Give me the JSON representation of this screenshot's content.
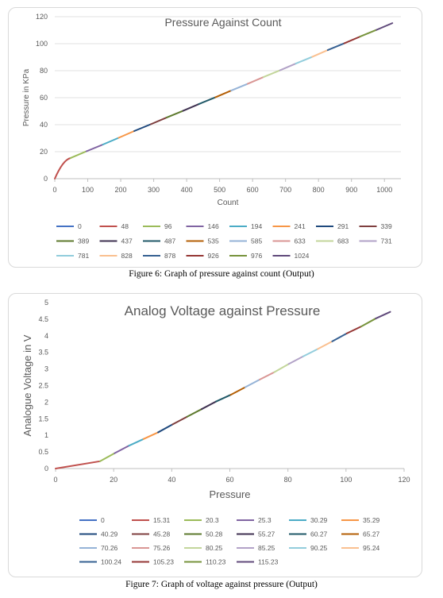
{
  "charts": [
    {
      "title": "Pressure Against Count",
      "caption": "Figure 6: Graph of pressure against count (Output)",
      "colors": [
        "#4472C4",
        "#C0504D",
        "#9BBB59",
        "#8064A2",
        "#4BACC6",
        "#F79646",
        "#1F497D",
        "#7F3F3F",
        "#5E7A2E",
        "#3F3151",
        "#215968",
        "#B45F06",
        "#95B3D7",
        "#D99694",
        "#C3D69B",
        "#B2A2C7",
        "#92CDDC",
        "#FAC090",
        "#366092",
        "#953735",
        "#77933C",
        "#604A7B"
      ],
      "chart_data": {
        "type": "line",
        "title": "Pressure Against Count",
        "xlabel": "Count",
        "ylabel": "Pressure in KPa",
        "xlim": [
          0,
          1050
        ],
        "ylim": [
          0,
          120
        ],
        "xticks": [
          0,
          100,
          200,
          300,
          400,
          500,
          600,
          700,
          800,
          900,
          1000
        ],
        "yticks": [
          0,
          20,
          40,
          60,
          80,
          100,
          120
        ],
        "grid": true,
        "legend_position": "bottom",
        "x": [
          0,
          48,
          96,
          146,
          194,
          241,
          291,
          339,
          389,
          437,
          487,
          535,
          585,
          633,
          683,
          731,
          781,
          828,
          878,
          926,
          976,
          1024
        ],
        "y": [
          0,
          15.31,
          20.3,
          25.3,
          30.29,
          35.29,
          40.29,
          45.28,
          50.28,
          55.27,
          60.27,
          65.27,
          70.26,
          75.26,
          80.25,
          85.25,
          90.25,
          95.24,
          100.24,
          105.23,
          110.23,
          115.23
        ],
        "series": [
          {
            "name": "0"
          },
          {
            "name": "48"
          },
          {
            "name": "96"
          },
          {
            "name": "146"
          },
          {
            "name": "194"
          },
          {
            "name": "241"
          },
          {
            "name": "291"
          },
          {
            "name": "339"
          },
          {
            "name": "389"
          },
          {
            "name": "437"
          },
          {
            "name": "487"
          },
          {
            "name": "535"
          },
          {
            "name": "585"
          },
          {
            "name": "633"
          },
          {
            "name": "683"
          },
          {
            "name": "731"
          },
          {
            "name": "781"
          },
          {
            "name": "828"
          },
          {
            "name": "878"
          },
          {
            "name": "926"
          },
          {
            "name": "976"
          },
          {
            "name": "1024"
          }
        ]
      }
    },
    {
      "title": "Analog Voltage against Pressure",
      "caption": "Figure 7: Graph of voltage against pressure (Output)",
      "colors": [
        "#4472C4",
        "#C0504D",
        "#9BBB59",
        "#8064A2",
        "#4BACC6",
        "#F79646",
        "#1F497D",
        "#7F3F3F",
        "#5E7A2E",
        "#3F3151",
        "#215968",
        "#B45F06",
        "#95B3D7",
        "#D99694",
        "#C3D69B",
        "#B2A2C7",
        "#92CDDC",
        "#FAC090",
        "#366092",
        "#953735",
        "#77933C",
        "#604A7B"
      ],
      "chart_data": {
        "type": "line",
        "title": "Analog Voltage against Pressure",
        "xlabel": "Pressure",
        "ylabel": "Analogue Voltage in V",
        "xlim": [
          0,
          120
        ],
        "ylim": [
          0,
          5
        ],
        "xticks": [
          0,
          20,
          40,
          60,
          80,
          100,
          120
        ],
        "yticks": [
          0,
          0.5,
          1,
          1.5,
          2,
          2.5,
          3,
          3.5,
          4,
          4.5,
          5
        ],
        "grid": false,
        "legend_position": "bottom",
        "x": [
          0,
          15.31,
          20.3,
          25.3,
          30.29,
          35.29,
          40.29,
          45.28,
          50.28,
          55.27,
          60.27,
          65.27,
          70.26,
          75.26,
          80.25,
          85.25,
          90.25,
          95.24,
          100.24,
          105.23,
          110.23,
          115.23
        ],
        "y": [
          0,
          0.22,
          0.46,
          0.69,
          0.89,
          1.09,
          1.33,
          1.56,
          1.79,
          2.02,
          2.22,
          2.45,
          2.68,
          2.9,
          3.15,
          3.38,
          3.6,
          3.83,
          4.07,
          4.28,
          4.52,
          4.72
        ],
        "series": [
          {
            "name": "0"
          },
          {
            "name": "15.31"
          },
          {
            "name": "20.3"
          },
          {
            "name": "25.3"
          },
          {
            "name": "30.29"
          },
          {
            "name": "35.29"
          },
          {
            "name": "40.29"
          },
          {
            "name": "45.28"
          },
          {
            "name": "50.28"
          },
          {
            "name": "55.27"
          },
          {
            "name": "60.27"
          },
          {
            "name": "65.27"
          },
          {
            "name": "70.26"
          },
          {
            "name": "75.26"
          },
          {
            "name": "80.25"
          },
          {
            "name": "85.25"
          },
          {
            "name": "90.25"
          },
          {
            "name": "95.24"
          },
          {
            "name": "100.24"
          },
          {
            "name": "105.23"
          },
          {
            "name": "110.23"
          },
          {
            "name": "115.23"
          }
        ]
      }
    }
  ]
}
